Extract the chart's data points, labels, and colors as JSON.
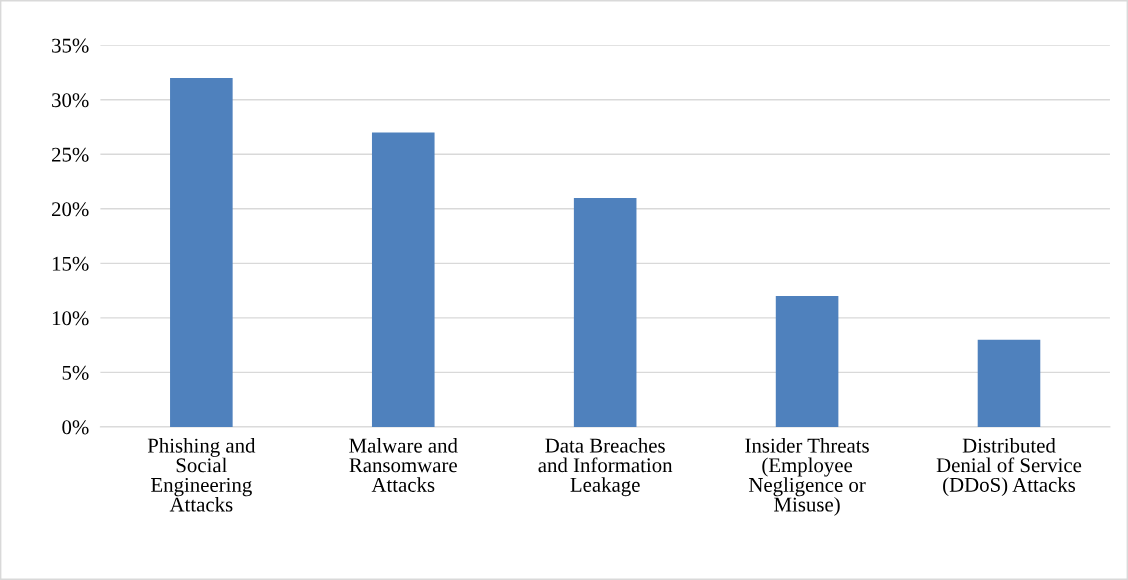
{
  "chart_data": {
    "type": "bar",
    "categories": [
      "Phishing and\nSocial\nEngineering\nAttacks",
      "Malware and\nRansomware\nAttacks",
      "Data Breaches\nand Information\nLeakage",
      "Insider Threats\n(Employee\nNegligence or\nMisuse)",
      "Distributed\nDenial of Service\n(DDoS) Attacks"
    ],
    "values": [
      32,
      27,
      21,
      12,
      8
    ],
    "color": "#4f81bd",
    "ylim": [
      0,
      35
    ],
    "yticks": [
      {
        "value": 0,
        "label": "0%"
      },
      {
        "value": 5,
        "label": "5%"
      },
      {
        "value": 10,
        "label": "10%"
      },
      {
        "value": 15,
        "label": "15%"
      },
      {
        "value": 20,
        "label": "20%"
      },
      {
        "value": 25,
        "label": "25%"
      },
      {
        "value": 30,
        "label": "30%"
      },
      {
        "value": 35,
        "label": "35%"
      }
    ],
    "grid": "y",
    "legend": false
  }
}
